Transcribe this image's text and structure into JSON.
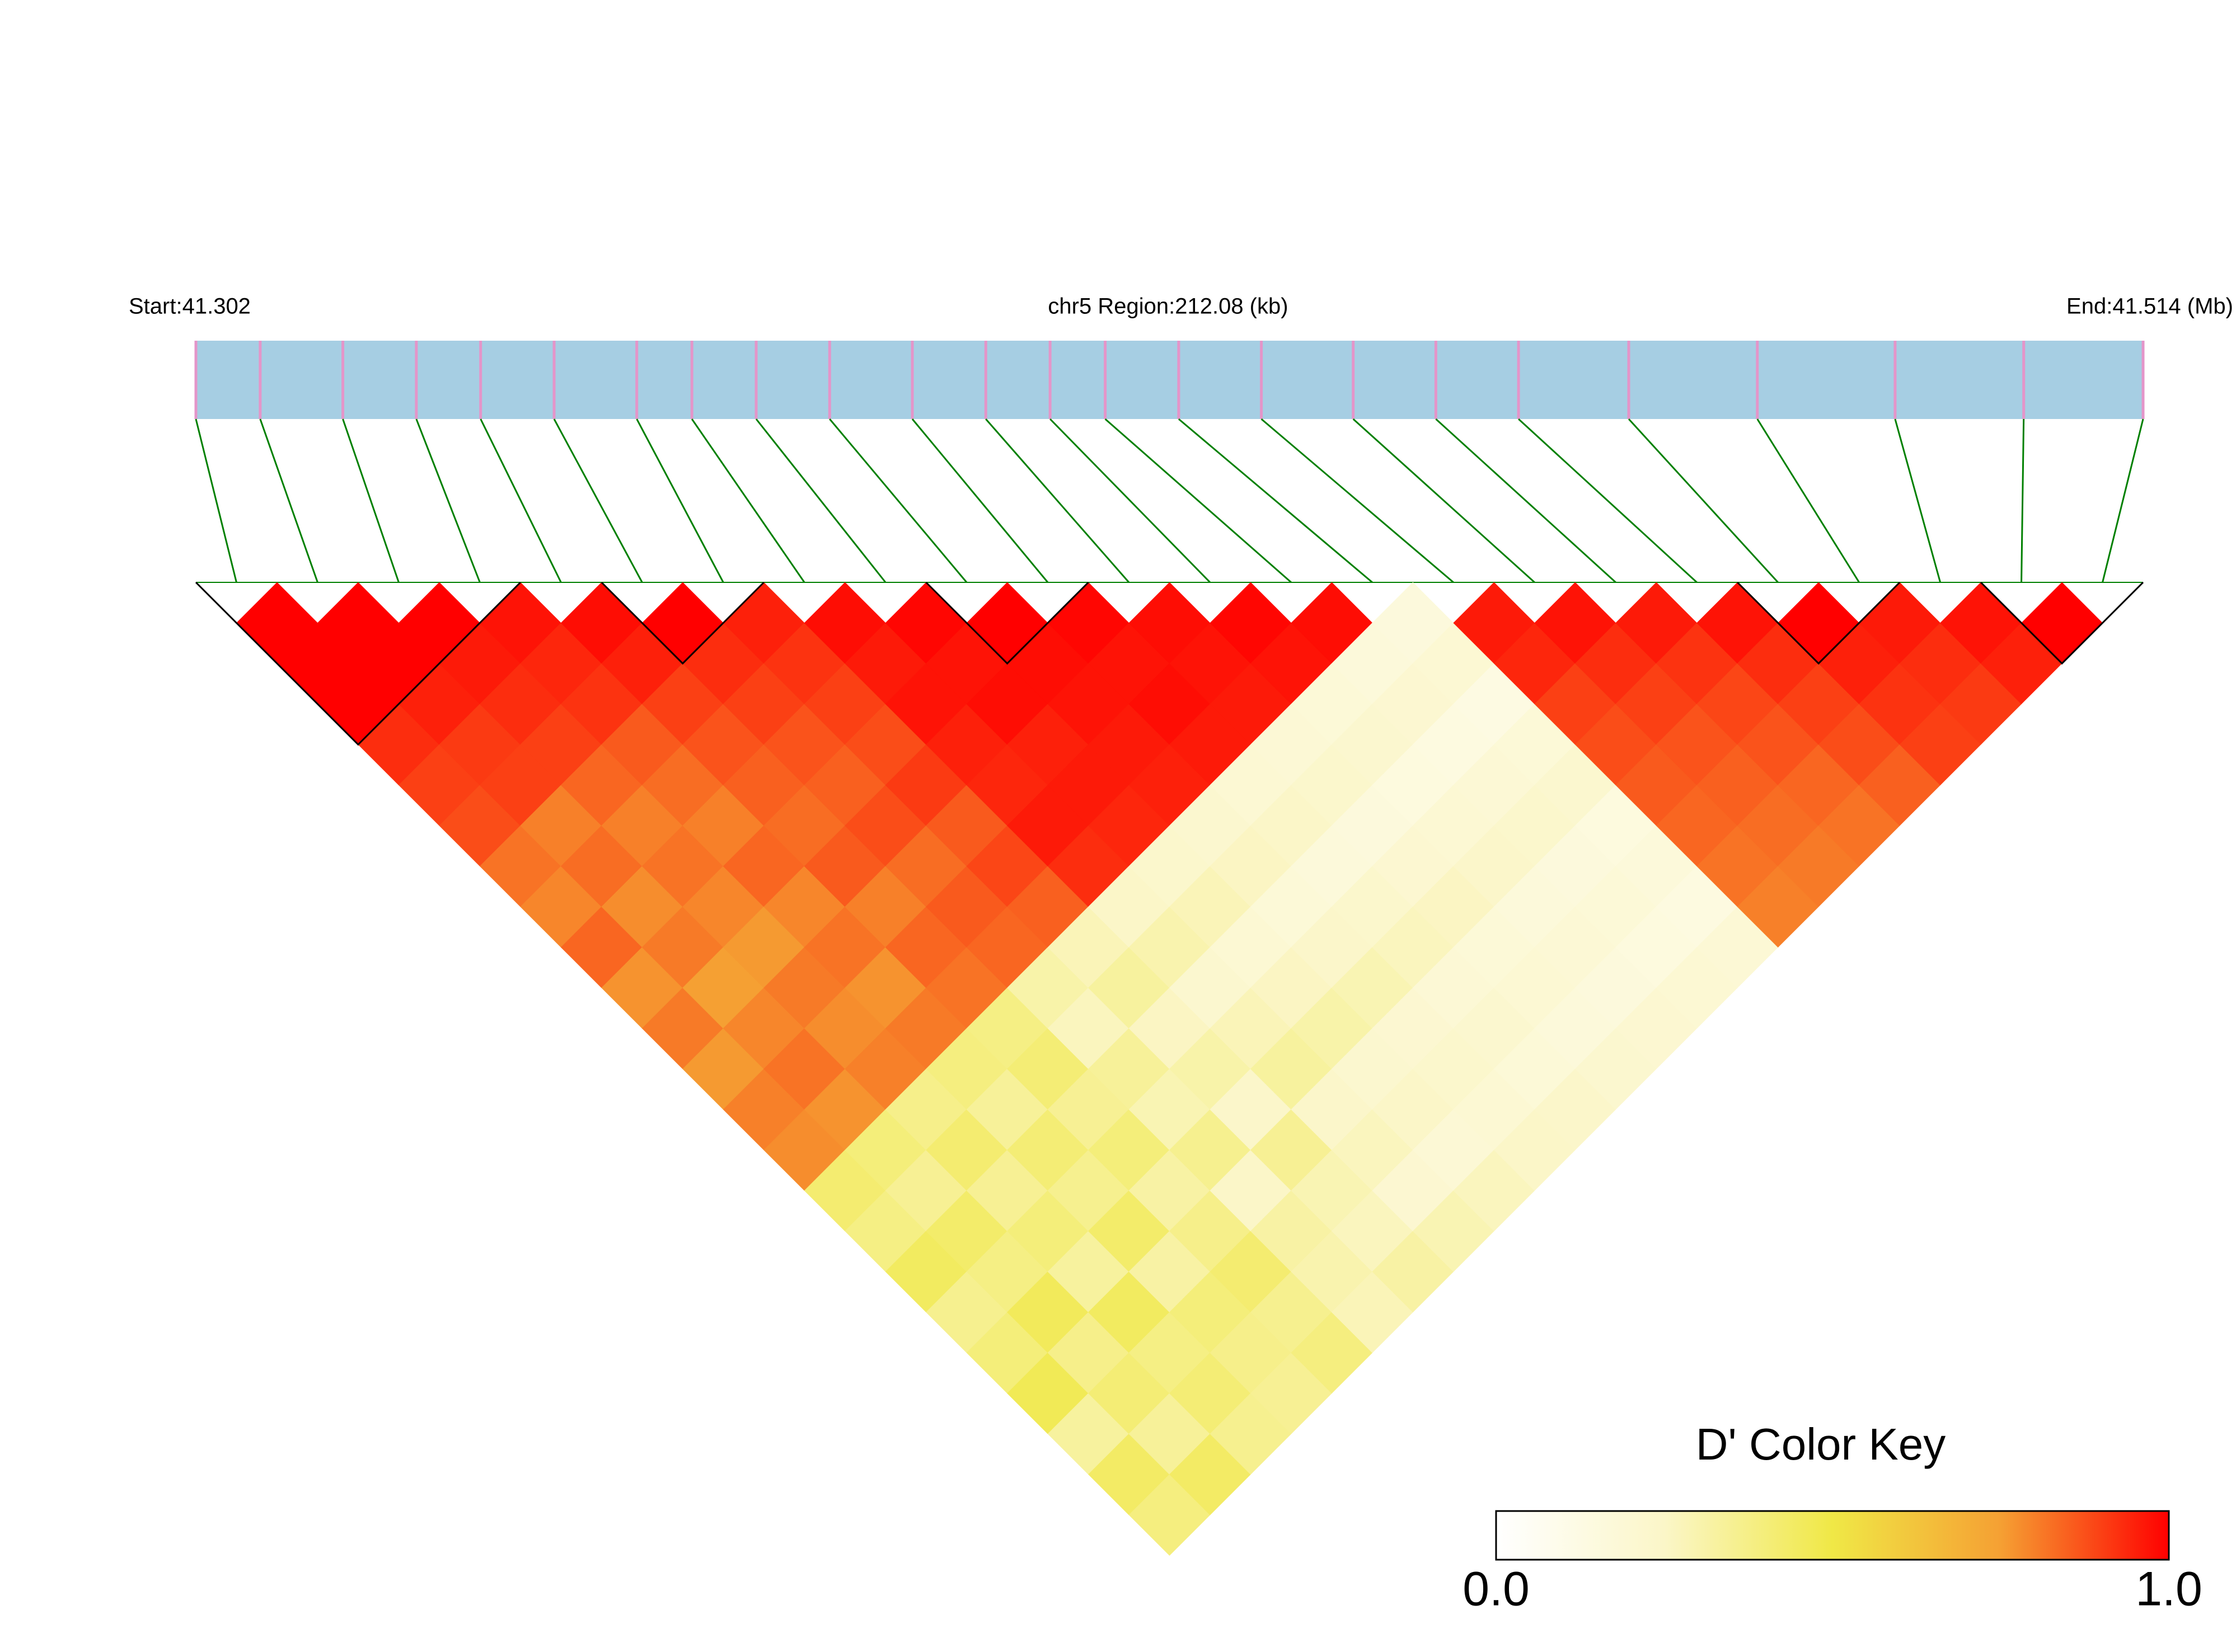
{
  "chart_data": {
    "type": "ld_heatmap",
    "start_label": "Start:41.302",
    "title": "chr5 Region:212.08 (kb)",
    "end_label": "End:41.514 (Mb)",
    "snp_positions": [
      41.302,
      41.309,
      41.318,
      41.326,
      41.333,
      41.341,
      41.35,
      41.356,
      41.363,
      41.371,
      41.38,
      41.388,
      41.395,
      41.401,
      41.409,
      41.418,
      41.428,
      41.437,
      41.446,
      41.458,
      41.472,
      41.487,
      41.501,
      41.514
    ],
    "xlim": [
      41.302,
      41.514
    ],
    "dprime": [
      [
        1,
        1,
        1,
        0.93,
        0.9,
        0.88,
        0.82,
        0.79,
        0.84,
        0.77,
        0.81,
        0.76,
        0.8,
        0.78,
        0.42,
        0.38,
        0.45,
        0.36,
        0.4,
        0.47,
        0.33,
        0.44,
        0.39
      ],
      [
        1,
        1,
        0.95,
        0.91,
        0.9,
        0.8,
        0.83,
        0.78,
        0.81,
        0.75,
        0.79,
        0.82,
        0.77,
        0.4,
        0.35,
        0.43,
        0.38,
        0.46,
        0.37,
        0.41,
        0.34,
        0.44
      ],
      [
        1,
        0.96,
        0.93,
        0.9,
        0.84,
        0.8,
        0.82,
        0.79,
        0.76,
        0.81,
        0.78,
        0.8,
        0.37,
        0.42,
        0.35,
        0.4,
        0.33,
        0.45,
        0.38,
        0.41,
        0.36
      ],
      [
        0.97,
        0.94,
        0.92,
        0.86,
        0.83,
        0.8,
        0.84,
        0.79,
        0.82,
        0.77,
        0.81,
        0.39,
        0.34,
        0.41,
        0.36,
        0.43,
        0.32,
        0.4,
        0.37,
        0.35
      ],
      [
        0.98,
        0.95,
        0.9,
        0.87,
        0.85,
        0.83,
        0.86,
        0.8,
        0.84,
        0.82,
        0.38,
        0.41,
        0.35,
        0.4,
        0.32,
        0.37,
        0.42,
        0.36,
        0.39
      ],
      [
        1,
        0.93,
        0.9,
        0.87,
        0.85,
        0.88,
        0.83,
        0.86,
        0.84,
        0.31,
        0.27,
        0.34,
        0.29,
        0.36,
        0.25,
        0.32,
        0.3,
        0.28
      ],
      [
        0.95,
        0.92,
        0.9,
        0.88,
        0.91,
        0.86,
        0.89,
        0.85,
        0.28,
        0.33,
        0.26,
        0.31,
        0.24,
        0.35,
        0.29,
        0.27,
        0.32
      ],
      [
        0.98,
        0.96,
        0.97,
        0.95,
        0.94,
        0.96,
        0.93,
        0.25,
        0.3,
        0.22,
        0.28,
        0.33,
        0.24,
        0.27,
        0.21,
        0.29
      ],
      [
        0.99,
        0.97,
        0.98,
        0.95,
        0.96,
        0.94,
        0.23,
        0.28,
        0.2,
        0.26,
        0.31,
        0.22,
        0.25,
        0.19,
        0.27
      ],
      [
        1,
        0.98,
        0.97,
        0.96,
        0.95,
        0.22,
        0.26,
        0.18,
        0.24,
        0.29,
        0.21,
        0.23,
        0.2,
        0.25
      ],
      [
        0.99,
        0.97,
        0.98,
        0.96,
        0.2,
        0.25,
        0.17,
        0.23,
        0.27,
        0.19,
        0.22,
        0.18,
        0.24
      ],
      [
        0.98,
        0.97,
        0.96,
        0.19,
        0.23,
        0.16,
        0.21,
        0.26,
        0.18,
        0.2,
        0.17,
        0.22
      ],
      [
        0.99,
        0.97,
        0.18,
        0.22,
        0.15,
        0.2,
        0.24,
        0.17,
        0.19,
        0.16,
        0.21
      ],
      [
        0.98,
        0.17,
        0.21,
        0.14,
        0.19,
        0.23,
        0.16,
        0.18,
        0.15,
        0.2
      ],
      [
        0.16,
        0.2,
        0.13,
        0.18,
        0.22,
        0.15,
        0.17,
        0.14,
        0.19
      ],
      [
        0.96,
        0.94,
        0.9,
        0.88,
        0.86,
        0.84,
        0.82,
        0.8
      ],
      [
        0.97,
        0.93,
        0.9,
        0.87,
        0.85,
        0.83,
        0.81
      ],
      [
        0.96,
        0.92,
        0.89,
        0.87,
        0.84,
        0.82
      ],
      [
        0.97,
        0.93,
        0.9,
        0.88,
        0.85
      ],
      [
        1,
        0.95,
        0.92,
        0.9
      ],
      [
        0.96,
        0.93,
        0.91
      ],
      [
        0.97,
        0.95
      ],
      [
        1
      ]
    ],
    "blocks": [
      [
        0,
        3
      ],
      [
        5,
        6
      ],
      [
        9,
        10
      ],
      [
        19,
        20
      ],
      [
        22,
        23
      ]
    ],
    "key_title": "D' Color Key",
    "clim": [
      0,
      1
    ],
    "cticks": [
      {
        "value": 0,
        "label": "0.0"
      },
      {
        "value": 1,
        "label": "1.0"
      }
    ],
    "colorscale": [
      "#ffffff",
      "#fbf6c8",
      "#f0e846",
      "#f5a033",
      "#ff0000"
    ],
    "bar_color": "#a6cee3",
    "snp_color": "#e495c9",
    "link_color": "#008000",
    "block_color": "#000000"
  }
}
